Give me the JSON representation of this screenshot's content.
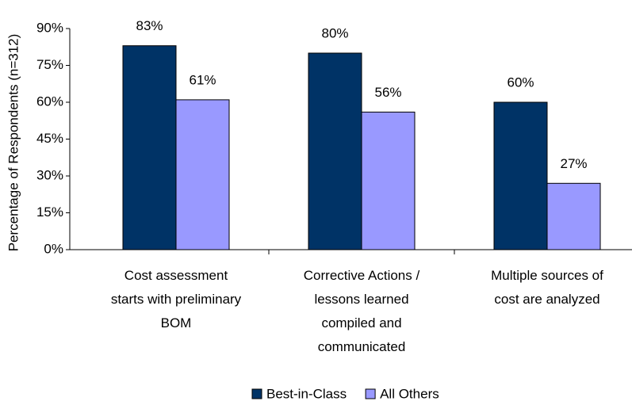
{
  "chart_data": {
    "type": "bar",
    "y_label": "Percentage of Respondents (n=312)",
    "categories": [
      "Cost assessment\nstarts with preliminary\nBOM",
      "Corrective Actions /\nlessons learned\ncompiled and\ncommunicated",
      "Multiple sources of\ncost are analyzed"
    ],
    "series": [
      {
        "name": "Best-in-Class",
        "color": "#003366",
        "values": [
          83,
          80,
          60
        ],
        "value_labels": [
          "83%",
          "80%",
          "60%"
        ]
      },
      {
        "name": "All Others",
        "color": "#9999ff",
        "values": [
          61,
          56,
          27
        ],
        "value_labels": [
          "61%",
          "56%",
          "27%"
        ]
      }
    ],
    "ylim": [
      0,
      90
    ],
    "yticks": [
      {
        "value": 0,
        "label": "0%"
      },
      {
        "value": 15,
        "label": "15%"
      },
      {
        "value": 30,
        "label": "30%"
      },
      {
        "value": 45,
        "label": "45%"
      },
      {
        "value": 60,
        "label": "60%"
      },
      {
        "value": 75,
        "label": "75%"
      },
      {
        "value": 90,
        "label": "90%"
      }
    ],
    "legend": "bottom"
  }
}
